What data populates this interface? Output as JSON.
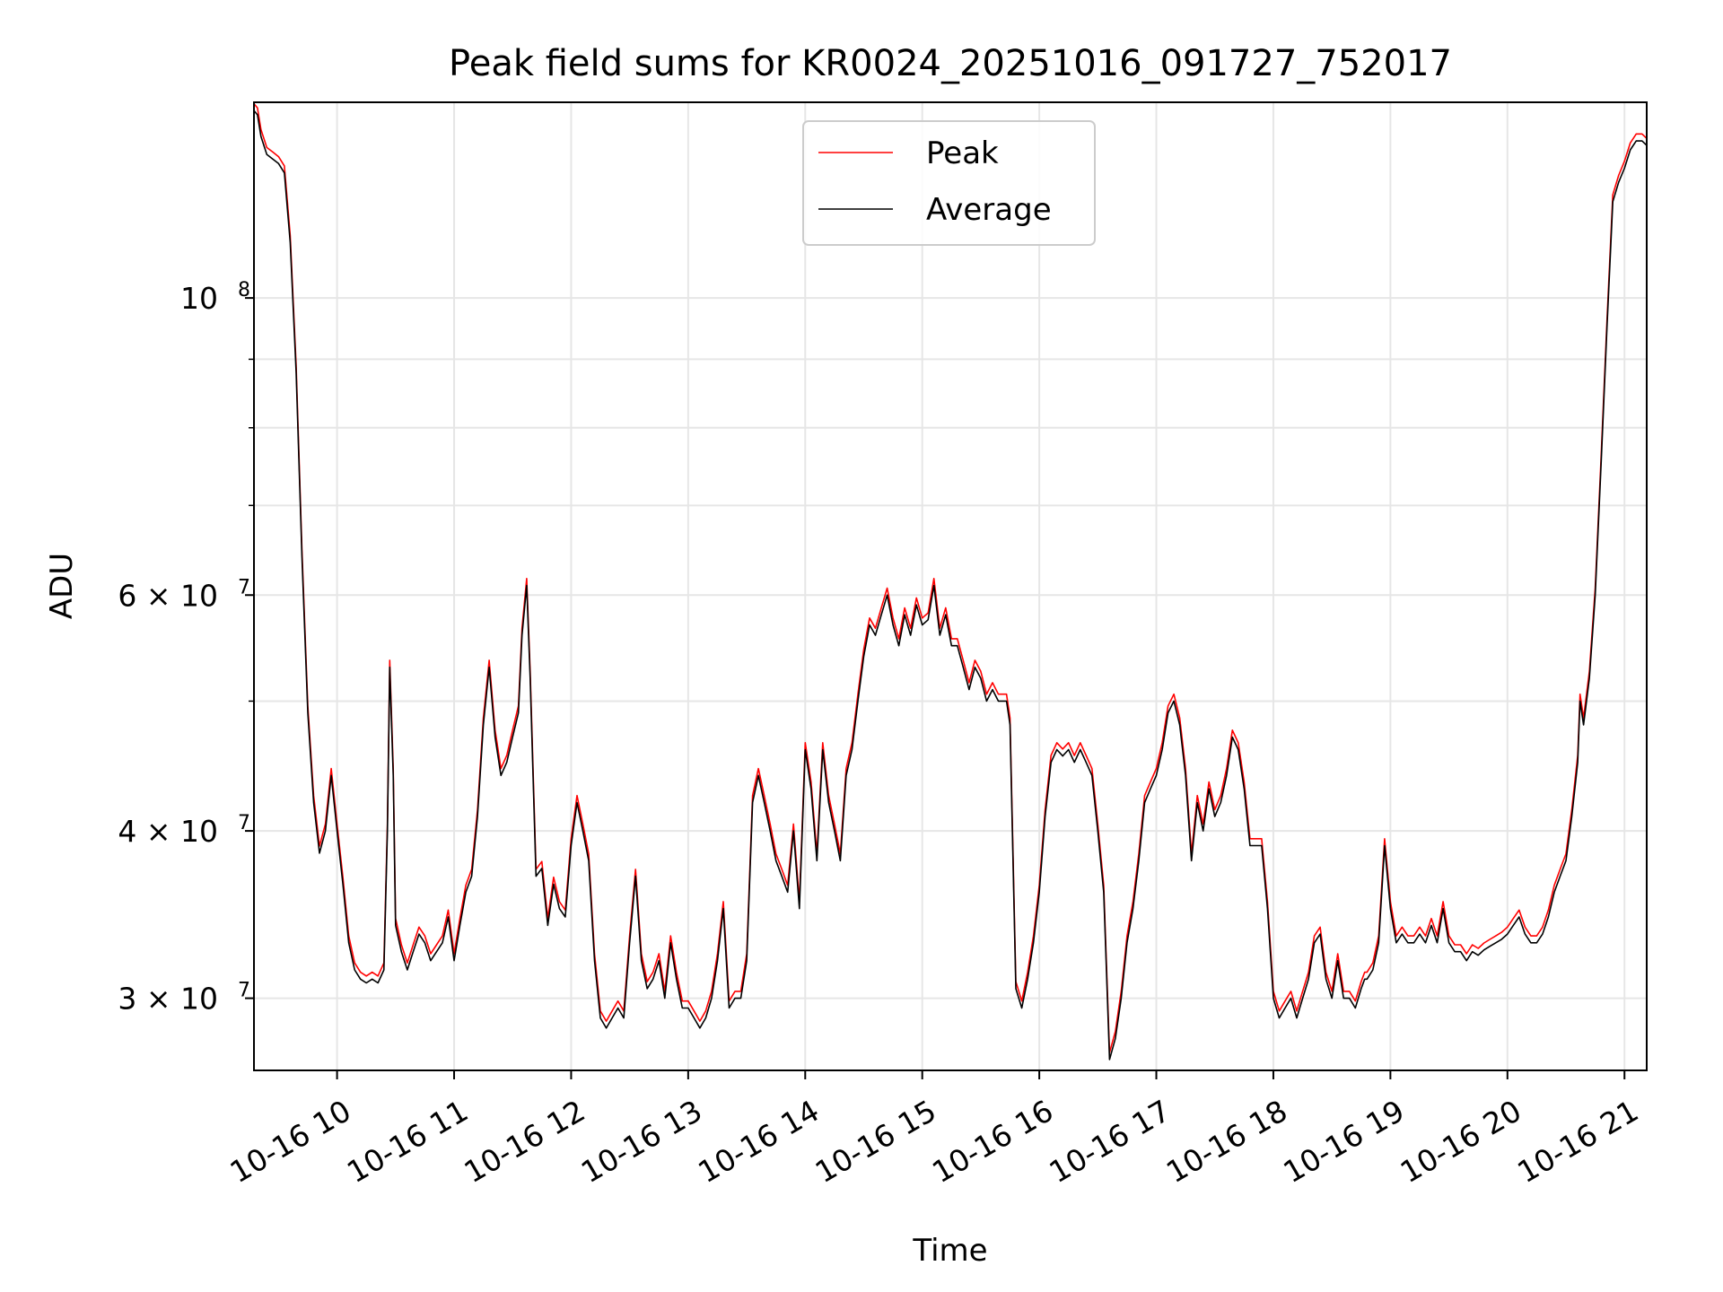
{
  "chart_data": {
    "type": "line",
    "title": "Peak field sums for KR0024_20251016_091727_752017",
    "xlabel": "Time",
    "ylabel": "ADU",
    "yscale": "log",
    "grid": true,
    "legend_position": "upper center",
    "xlim_hours": [
      9.29,
      21.19
    ],
    "ylim": [
      26500000,
      140000000
    ],
    "x_ticks": [
      {
        "hour": 10,
        "label": "10-16 10"
      },
      {
        "hour": 11,
        "label": "10-16 11"
      },
      {
        "hour": 12,
        "label": "10-16 12"
      },
      {
        "hour": 13,
        "label": "10-16 13"
      },
      {
        "hour": 14,
        "label": "10-16 14"
      },
      {
        "hour": 15,
        "label": "10-16 15"
      },
      {
        "hour": 16,
        "label": "10-16 16"
      },
      {
        "hour": 17,
        "label": "10-16 17"
      },
      {
        "hour": 18,
        "label": "10-16 18"
      },
      {
        "hour": 19,
        "label": "10-16 19"
      },
      {
        "hour": 20,
        "label": "10-16 20"
      },
      {
        "hour": 21,
        "label": "10-16 21"
      }
    ],
    "y_ticks": [
      {
        "value": 30000000,
        "base": "3 × 10",
        "exp": "7"
      },
      {
        "value": 40000000,
        "base": "4 × 10",
        "exp": "7"
      },
      {
        "value": 60000000,
        "base": "6 × 10",
        "exp": "7"
      },
      {
        "value": 100000000,
        "base": "10",
        "exp": "8"
      }
    ],
    "y_minor_ticks": [
      50000000,
      70000000,
      80000000,
      90000000
    ],
    "series": [
      {
        "name": "Average",
        "color": "#000000",
        "x_hours": [
          9.29,
          9.32,
          9.35,
          9.4,
          9.45,
          9.5,
          9.55,
          9.6,
          9.65,
          9.7,
          9.75,
          9.8,
          9.85,
          9.9,
          9.95,
          10.0,
          10.05,
          10.1,
          10.15,
          10.2,
          10.25,
          10.3,
          10.35,
          10.4,
          10.43,
          10.45,
          10.48,
          10.5,
          10.55,
          10.6,
          10.65,
          10.7,
          10.75,
          10.8,
          10.85,
          10.9,
          10.95,
          11.0,
          11.05,
          11.1,
          11.15,
          11.2,
          11.25,
          11.3,
          11.35,
          11.4,
          11.45,
          11.5,
          11.55,
          11.58,
          11.62,
          11.65,
          11.7,
          11.75,
          11.8,
          11.85,
          11.9,
          11.95,
          12.0,
          12.05,
          12.1,
          12.15,
          12.2,
          12.25,
          12.3,
          12.35,
          12.4,
          12.45,
          12.5,
          12.55,
          12.6,
          12.65,
          12.7,
          12.75,
          12.8,
          12.85,
          12.9,
          12.95,
          13.0,
          13.05,
          13.1,
          13.15,
          13.2,
          13.25,
          13.3,
          13.35,
          13.4,
          13.45,
          13.5,
          13.55,
          13.6,
          13.65,
          13.7,
          13.75,
          13.8,
          13.85,
          13.9,
          13.95,
          14.0,
          14.05,
          14.1,
          14.15,
          14.2,
          14.25,
          14.3,
          14.35,
          14.4,
          14.45,
          14.5,
          14.55,
          14.6,
          14.65,
          14.7,
          14.75,
          14.8,
          14.85,
          14.9,
          14.95,
          15.0,
          15.05,
          15.1,
          15.15,
          15.2,
          15.25,
          15.3,
          15.35,
          15.4,
          15.45,
          15.5,
          15.55,
          15.6,
          15.65,
          15.7,
          15.72,
          15.75,
          15.8,
          15.85,
          15.9,
          15.95,
          16.0,
          16.05,
          16.1,
          16.15,
          16.2,
          16.25,
          16.3,
          16.35,
          16.4,
          16.45,
          16.5,
          16.55,
          16.6,
          16.65,
          16.7,
          16.75,
          16.8,
          16.85,
          16.9,
          16.95,
          17.0,
          17.05,
          17.1,
          17.15,
          17.2,
          17.25,
          17.3,
          17.35,
          17.4,
          17.45,
          17.5,
          17.55,
          17.6,
          17.65,
          17.7,
          17.75,
          17.8,
          17.85,
          17.9,
          17.95,
          18.0,
          18.05,
          18.1,
          18.15,
          18.2,
          18.25,
          18.3,
          18.35,
          18.4,
          18.45,
          18.5,
          18.55,
          18.6,
          18.65,
          18.7,
          18.75,
          18.78,
          18.8,
          18.85,
          18.9,
          18.95,
          19.0,
          19.05,
          19.1,
          19.15,
          19.2,
          19.25,
          19.3,
          19.35,
          19.4,
          19.45,
          19.5,
          19.55,
          19.6,
          19.65,
          19.7,
          19.75,
          19.8,
          19.85,
          19.9,
          19.95,
          20.0,
          20.05,
          20.1,
          20.15,
          20.2,
          20.25,
          20.3,
          20.35,
          20.4,
          20.45,
          20.5,
          20.55,
          20.6,
          20.62,
          20.65,
          20.7,
          20.75,
          20.8,
          20.85,
          20.9,
          20.95,
          21.0,
          21.05,
          21.1,
          21.15,
          21.19
        ],
        "values": [
          138000000.0,
          137000000.0,
          132000000.0,
          128000000.0,
          127000000.0,
          126000000.0,
          124000000.0,
          110000000.0,
          88000000.0,
          64000000.0,
          49000000.0,
          42000000.0,
          38500000.0,
          40000000.0,
          44000000.0,
          40000000.0,
          36500000.0,
          33000000.0,
          31500000.0,
          31000000.0,
          30800000.0,
          31000000.0,
          30800000.0,
          31500000.0,
          40000000.0,
          53000000.0,
          44000000.0,
          34000000.0,
          32500000.0,
          31500000.0,
          32500000.0,
          33500000.0,
          33000000.0,
          32000000.0,
          32500000.0,
          33000000.0,
          34500000.0,
          32000000.0,
          34000000.0,
          36000000.0,
          37000000.0,
          41000000.0,
          48000000.0,
          53000000.0,
          47000000.0,
          44000000.0,
          45000000.0,
          47000000.0,
          49000000.0,
          56000000.0,
          61000000.0,
          52000000.0,
          37000000.0,
          37500000.0,
          34000000.0,
          36500000.0,
          35000000.0,
          34500000.0,
          39000000.0,
          42000000.0,
          40000000.0,
          38000000.0,
          32000000.0,
          29000000.0,
          28500000.0,
          29000000.0,
          29500000.0,
          29000000.0,
          33000000.0,
          37000000.0,
          32000000.0,
          30500000.0,
          31000000.0,
          32000000.0,
          30000000.0,
          33000000.0,
          31000000.0,
          29500000.0,
          29500000.0,
          29000000.0,
          28500000.0,
          29000000.0,
          30000000.0,
          32000000.0,
          35000000.0,
          29500000.0,
          30000000.0,
          30000000.0,
          32000000.0,
          42000000.0,
          44000000.0,
          42000000.0,
          40000000.0,
          38000000.0,
          37000000.0,
          36000000.0,
          40000000.0,
          35000000.0,
          46000000.0,
          43000000.0,
          38000000.0,
          46000000.0,
          42000000.0,
          40000000.0,
          38000000.0,
          44000000.0,
          46000000.0,
          50000000.0,
          54000000.0,
          57000000.0,
          56000000.0,
          58000000.0,
          60000000.0,
          57000000.0,
          55000000.0,
          58000000.0,
          56000000.0,
          59000000.0,
          57000000.0,
          57500000.0,
          61000000.0,
          56000000.0,
          58000000.0,
          55000000.0,
          55000000.0,
          53000000.0,
          51000000.0,
          53000000.0,
          52000000.0,
          50000000.0,
          51000000.0,
          50000000.0,
          50000000.0,
          50000000.0,
          48000000.0,
          30500000.0,
          29500000.0,
          31000000.0,
          33000000.0,
          36000000.0,
          41000000.0,
          45000000.0,
          46000000.0,
          45500000.0,
          46000000.0,
          45000000.0,
          46000000.0,
          45000000.0,
          44000000.0,
          40000000.0,
          36000000.0,
          27000000.0,
          28000000.0,
          30000000.0,
          33000000.0,
          35000000.0,
          38000000.0,
          42000000.0,
          43000000.0,
          44000000.0,
          46000000.0,
          49000000.0,
          50000000.0,
          48000000.0,
          44000000.0,
          38000000.0,
          42000000.0,
          40000000.0,
          43000000.0,
          41000000.0,
          42000000.0,
          44000000.0,
          47000000.0,
          46000000.0,
          43000000.0,
          39000000.0,
          39000000.0,
          39000000.0,
          35000000.0,
          30000000.0,
          29000000.0,
          29500000.0,
          30000000.0,
          29000000.0,
          30000000.0,
          31000000.0,
          33000000.0,
          33500000.0,
          31000000.0,
          30000000.0,
          32000000.0,
          30000000.0,
          30000000.0,
          29500000.0,
          30500000.0,
          31000000.0,
          31000000.0,
          31500000.0,
          33000000.0,
          39000000.0,
          35000000.0,
          33000000.0,
          33500000.0,
          33000000.0,
          33000000.0,
          33500000.0,
          33000000.0,
          34000000.0,
          33000000.0,
          35000000.0,
          33000000.0,
          32500000.0,
          32500000.0,
          32000000.0,
          32500000.0,
          32300000.0,
          32600000.0,
          32800000.0,
          33000000.0,
          33200000.0,
          33500000.0,
          34000000.0,
          34500000.0,
          33500000.0,
          33000000.0,
          33000000.0,
          33500000.0,
          34500000.0,
          36000000.0,
          37000000.0,
          38000000.0,
          41000000.0,
          45000000.0,
          50000000.0,
          48000000.0,
          52000000.0,
          60000000.0,
          75000000.0,
          95000000.0,
          118000000.0,
          122000000.0,
          125000000.0,
          129000000.0,
          131000000.0,
          131000000.0,
          130000000.0
        ]
      },
      {
        "name": "Peak",
        "color": "#ff0000",
        "offset_ratio": 1.012
      }
    ]
  }
}
